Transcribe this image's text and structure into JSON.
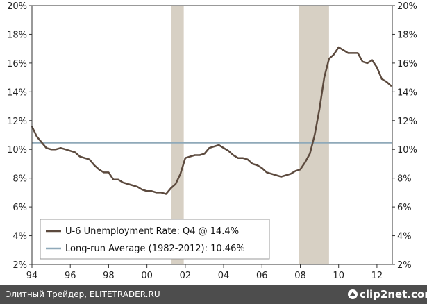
{
  "chart_data": {
    "type": "line",
    "title": "",
    "xlabel": "",
    "ylabel": "",
    "x_range": [
      1994,
      2012.8
    ],
    "ylim": [
      2,
      20
    ],
    "y_ticks": [
      2,
      4,
      6,
      8,
      10,
      12,
      14,
      16,
      18,
      20
    ],
    "y_tick_labels": [
      "2%",
      "4%",
      "6%",
      "8%",
      "10%",
      "12%",
      "14%",
      "16%",
      "18%",
      "20%"
    ],
    "x_ticks": [
      1994,
      1996,
      1998,
      2000,
      2002,
      2004,
      2006,
      2008,
      2010,
      2012
    ],
    "x_tick_labels": [
      "94",
      "96",
      "98",
      "00",
      "02",
      "04",
      "06",
      "08",
      "10",
      "12"
    ],
    "grid": false,
    "recessions": [
      {
        "start": 2001.25,
        "end": 2001.92
      },
      {
        "start": 2007.92,
        "end": 2009.5
      }
    ],
    "series": [
      {
        "name": "U-6 Unemployment Rate: Q4 @ 14.4%",
        "color": "#5c4a3e",
        "x": [
          1994.0,
          1994.25,
          1994.5,
          1994.75,
          1995.0,
          1995.25,
          1995.5,
          1995.75,
          1996.0,
          1996.25,
          1996.5,
          1996.75,
          1997.0,
          1997.25,
          1997.5,
          1997.75,
          1998.0,
          1998.25,
          1998.5,
          1998.75,
          1999.0,
          1999.25,
          1999.5,
          1999.75,
          2000.0,
          2000.25,
          2000.5,
          2000.75,
          2001.0,
          2001.25,
          2001.5,
          2001.75,
          2002.0,
          2002.25,
          2002.5,
          2002.75,
          2003.0,
          2003.25,
          2003.5,
          2003.75,
          2004.0,
          2004.25,
          2004.5,
          2004.75,
          2005.0,
          2005.25,
          2005.5,
          2005.75,
          2006.0,
          2006.25,
          2006.5,
          2006.75,
          2007.0,
          2007.25,
          2007.5,
          2007.75,
          2008.0,
          2008.25,
          2008.5,
          2008.75,
          2009.0,
          2009.25,
          2009.5,
          2009.75,
          2010.0,
          2010.25,
          2010.5,
          2010.75,
          2011.0,
          2011.25,
          2011.5,
          2011.75,
          2012.0,
          2012.25,
          2012.5,
          2012.75
        ],
        "values": [
          11.6,
          10.9,
          10.5,
          10.1,
          10.0,
          10.0,
          10.1,
          10.0,
          9.9,
          9.8,
          9.5,
          9.4,
          9.3,
          8.9,
          8.6,
          8.4,
          8.4,
          7.9,
          7.9,
          7.7,
          7.6,
          7.5,
          7.4,
          7.2,
          7.1,
          7.1,
          7.0,
          7.0,
          6.9,
          7.3,
          7.6,
          8.3,
          9.4,
          9.5,
          9.6,
          9.6,
          9.7,
          10.1,
          10.2,
          10.3,
          10.1,
          9.9,
          9.6,
          9.4,
          9.4,
          9.3,
          9.0,
          8.9,
          8.7,
          8.4,
          8.3,
          8.2,
          8.1,
          8.2,
          8.3,
          8.5,
          8.6,
          9.1,
          9.7,
          11.0,
          12.8,
          15.0,
          16.3,
          16.6,
          17.1,
          16.9,
          16.7,
          16.7,
          16.7,
          16.1,
          16.0,
          16.2,
          15.7,
          14.9,
          14.7,
          14.4
        ]
      },
      {
        "name": "Long-run Average (1982-2012): 10.46%",
        "color": "#8fa9b9",
        "x": [
          1994.0,
          2012.8
        ],
        "values": [
          10.46,
          10.46
        ]
      }
    ],
    "legend": {
      "placement": "bottom-left"
    }
  },
  "footer": {
    "credit": "Элитный Трейдер, ELITETRADER.RU",
    "logo_text": "clip2net.com"
  },
  "colors": {
    "recession_fill": "#d7d0c4",
    "axis": "#333333",
    "footer_bg": "#4d4d4d"
  }
}
